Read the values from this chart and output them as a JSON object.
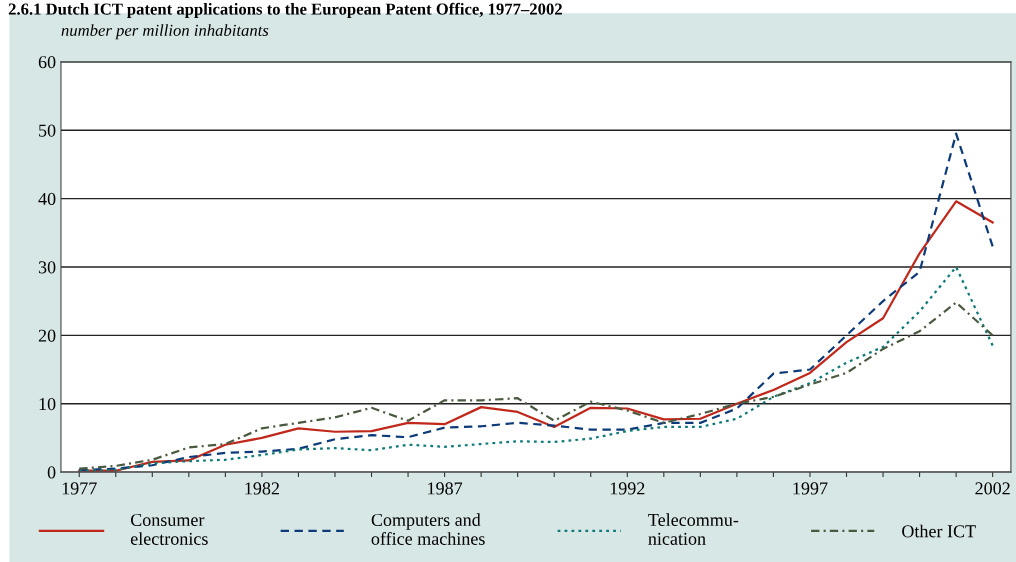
{
  "chart_data": {
    "type": "line",
    "title": "2.6.1 Dutch ICT patent applications to the European Patent Office, 1977–2002",
    "ylabel": "number per million inhabitants",
    "x": [
      1977,
      1978,
      1979,
      1980,
      1981,
      1982,
      1983,
      1984,
      1985,
      1986,
      1987,
      1988,
      1989,
      1990,
      1991,
      1992,
      1993,
      1994,
      1995,
      1996,
      1997,
      1998,
      1999,
      2000,
      2001,
      2002
    ],
    "xlim": [
      1976.5,
      2002.5
    ],
    "xticks": [
      1977,
      {
        "value": 1978,
        "label": null
      },
      {
        "value": 1979,
        "label": null
      },
      {
        "value": 1980,
        "label": null
      },
      {
        "value": 1981,
        "label": null
      },
      1982,
      {
        "value": 1983,
        "label": null
      },
      {
        "value": 1984,
        "label": null
      },
      {
        "value": 1985,
        "label": null
      },
      {
        "value": 1986,
        "label": null
      },
      1987,
      {
        "value": 1988,
        "label": null
      },
      {
        "value": 1989,
        "label": null
      },
      {
        "value": 1990,
        "label": null
      },
      {
        "value": 1991,
        "label": null
      },
      1992,
      {
        "value": 1993,
        "label": null
      },
      {
        "value": 1994,
        "label": null
      },
      {
        "value": 1995,
        "label": null
      },
      {
        "value": 1996,
        "label": null
      },
      1997,
      {
        "value": 1998,
        "label": null
      },
      {
        "value": 1999,
        "label": null
      },
      {
        "value": 2000,
        "label": null
      },
      {
        "value": 2001,
        "label": null
      },
      2002
    ],
    "ylim": [
      0,
      60
    ],
    "yticks": [
      0,
      10,
      20,
      30,
      40,
      50,
      60
    ],
    "grid": "y",
    "legend": "bottom",
    "marker": "none",
    "series": [
      {
        "name": "Consumer\nelectronics",
        "color": "#c0281c",
        "line_style": "solid",
        "values": [
          0.2,
          0.2,
          1.5,
          1.7,
          4,
          5,
          6.4,
          5.9,
          6,
          7.2,
          7,
          9.5,
          8.8,
          6.6,
          9.4,
          9.3,
          7.7,
          7.8,
          10,
          12,
          14.5,
          19,
          22.5,
          32,
          39.6,
          36.5
        ]
      },
      {
        "name": "Computers and\noffice machines",
        "color": "#0d3a78",
        "line_style": "dashed",
        "values": [
          0.3,
          0.5,
          1,
          2.2,
          2.8,
          3,
          3.4,
          4.8,
          5.4,
          5.1,
          6.5,
          6.7,
          7.2,
          6.8,
          6.2,
          6.2,
          7.2,
          7.2,
          9.3,
          14.4,
          15,
          20,
          25,
          29.3,
          49.5,
          33
        ]
      },
      {
        "name": "Telecommu-\nnication",
        "color": "#0d7a78",
        "line_style": "dotted",
        "values": [
          0.2,
          0.3,
          1.3,
          1.6,
          1.8,
          2.5,
          3.3,
          3.5,
          3.2,
          4,
          3.7,
          4.1,
          4.5,
          4.4,
          4.9,
          6,
          6.6,
          6.6,
          7.8,
          11,
          13,
          16,
          18.3,
          23.5,
          30,
          18.5
        ]
      },
      {
        "name": "Other ICT",
        "color": "#4a5a40",
        "line_style": "dashdot",
        "values": [
          0.5,
          0.9,
          1.8,
          3.6,
          4.1,
          6.4,
          7.2,
          8,
          9.4,
          7.5,
          10.5,
          10.5,
          10.8,
          7.5,
          10.3,
          9,
          7.2,
          8.5,
          10,
          11,
          12.8,
          14.5,
          18,
          20.6,
          24.8,
          20
        ]
      }
    ]
  }
}
